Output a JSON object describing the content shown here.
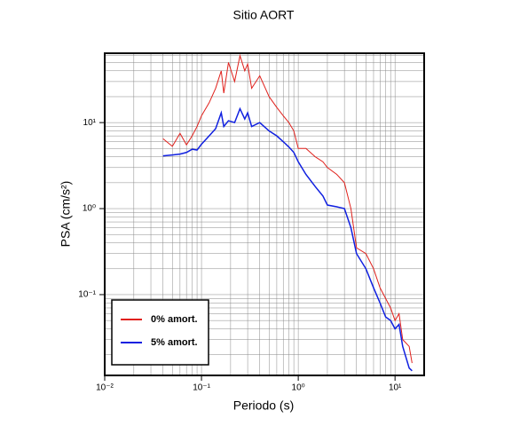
{
  "chart_data": {
    "type": "line",
    "title": "Sitio AORT",
    "xlabel": "Periodo (s)",
    "ylabel": "PSA (cm/s²)",
    "xlog": true,
    "ylog": true,
    "grid": true,
    "xlim": [
      0.01,
      20
    ],
    "ylim": [
      0.0115,
      64
    ],
    "xticks": [
      {
        "value": 0.01,
        "label": "10⁻²"
      },
      {
        "value": 0.1,
        "label": "10⁻¹"
      },
      {
        "value": 1,
        "label": "10⁰"
      },
      {
        "value": 10,
        "label": "10¹"
      }
    ],
    "yticks": [
      {
        "value": 0.1,
        "label": "10⁻¹"
      },
      {
        "value": 1,
        "label": "10⁰"
      },
      {
        "value": 10,
        "label": "10¹"
      }
    ],
    "xminor": [
      0.02,
      0.03,
      0.04,
      0.05,
      0.06,
      0.07,
      0.08,
      0.09,
      0.2,
      0.3,
      0.4,
      0.5,
      0.6,
      0.7,
      0.8,
      0.9,
      2,
      3,
      4,
      5,
      6,
      7,
      8,
      9
    ],
    "yminor": [
      0.02,
      0.03,
      0.04,
      0.05,
      0.06,
      0.07,
      0.08,
      0.09,
      0.2,
      0.3,
      0.4,
      0.5,
      0.6,
      0.7,
      0.8,
      0.9,
      2,
      3,
      4,
      5,
      6,
      7,
      8,
      9,
      20,
      30,
      40,
      50,
      60
    ],
    "legend": "lower left",
    "x": [
      0.04,
      0.05,
      0.06,
      0.07,
      0.08,
      0.09,
      0.1,
      0.12,
      0.14,
      0.16,
      0.17,
      0.19,
      0.22,
      0.25,
      0.28,
      0.3,
      0.33,
      0.4,
      0.5,
      0.6,
      0.7,
      0.8,
      0.9,
      1.0,
      1.2,
      1.5,
      1.8,
      2.0,
      2.5,
      3.0,
      3.5,
      4.0,
      5.0,
      6.0,
      7.0,
      8.0,
      9.0,
      10,
      11,
      12,
      14,
      15
    ],
    "series": [
      {
        "name": "0% amort.",
        "color": "#e0201b",
        "values": [
          6.5,
          5.3,
          7.5,
          5.5,
          7,
          9,
          12,
          17,
          25,
          40,
          22,
          50,
          30,
          60,
          40,
          48,
          25,
          35,
          20,
          15,
          12,
          10,
          8,
          5,
          5,
          4,
          3.5,
          3,
          2.5,
          2.0,
          1.0,
          0.35,
          0.3,
          0.2,
          0.12,
          0.09,
          0.07,
          0.05,
          0.06,
          0.03,
          0.025,
          0.016
        ]
      },
      {
        "name": "5% amort.",
        "color": "#1020e0",
        "values": [
          4.1,
          4.2,
          4.3,
          4.5,
          4.9,
          4.8,
          5.6,
          7,
          8.5,
          13,
          9,
          10.5,
          10,
          14.5,
          11,
          13,
          9,
          10,
          8,
          7,
          6,
          5.2,
          4.5,
          3.5,
          2.5,
          1.8,
          1.4,
          1.1,
          1.05,
          1.0,
          0.6,
          0.3,
          0.2,
          0.12,
          0.08,
          0.055,
          0.05,
          0.04,
          0.045,
          0.025,
          0.014,
          0.013
        ]
      }
    ]
  }
}
